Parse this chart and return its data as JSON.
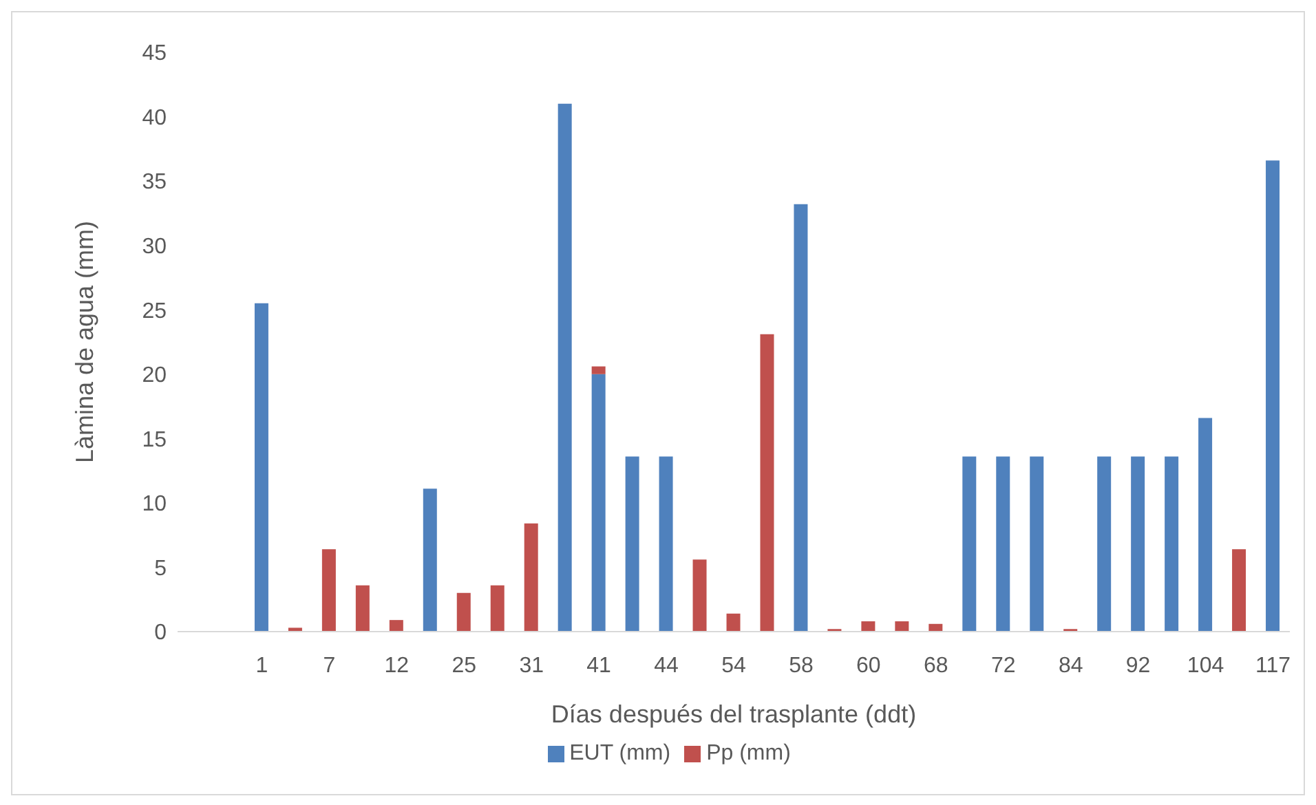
{
  "chart_data": {
    "type": "bar",
    "stacked": true,
    "xlabel": "Días después del trasplante (ddt)",
    "ylabel": "Làmina de agua (mm)",
    "categories": [
      null,
      null,
      "1",
      null,
      "7",
      null,
      "12",
      null,
      "25",
      null,
      "31",
      null,
      "41",
      null,
      "44",
      null,
      "54",
      null,
      "58",
      null,
      "60",
      null,
      "68",
      null,
      "72",
      null,
      "84",
      null,
      "92",
      null,
      "104",
      null,
      "117"
    ],
    "series": [
      {
        "name": "EUT (mm)",
        "color": "#4f81bd",
        "values": [
          null,
          null,
          25.5,
          null,
          null,
          null,
          null,
          11.1,
          null,
          null,
          null,
          41,
          20,
          13.6,
          13.6,
          null,
          null,
          null,
          33.2,
          null,
          null,
          null,
          null,
          13.6,
          13.6,
          13.6,
          null,
          13.6,
          13.6,
          13.6,
          16.6,
          null,
          36.6
        ]
      },
      {
        "name": "Pp (mm)",
        "color": "#c0504d",
        "values": [
          null,
          null,
          null,
          0.3,
          6.4,
          3.6,
          0.9,
          null,
          3.0,
          3.6,
          8.4,
          null,
          0.6,
          null,
          null,
          5.6,
          1.4,
          23.1,
          null,
          0.2,
          0.8,
          0.8,
          0.6,
          null,
          null,
          null,
          0.2,
          null,
          null,
          null,
          null,
          6.4,
          null
        ]
      }
    ],
    "ylim": [
      0,
      45
    ],
    "yticks": [
      0,
      5,
      10,
      15,
      20,
      25,
      30,
      35,
      40,
      45
    ],
    "grid": false,
    "legend": "bottom"
  }
}
